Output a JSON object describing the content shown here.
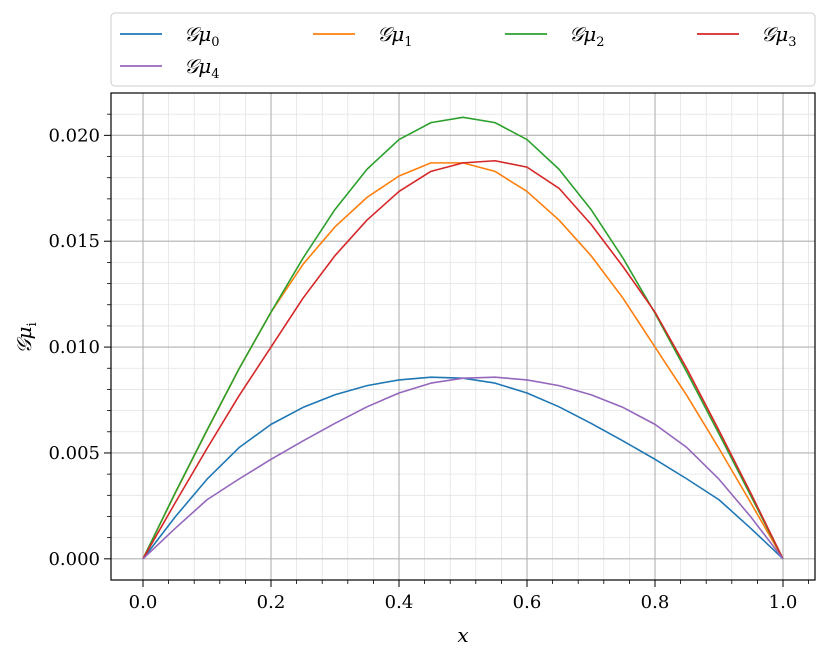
{
  "chart_data": {
    "type": "line",
    "xlabel": "x",
    "ylabel_main": "𝒢μ",
    "ylabel_sub": "i",
    "xlim": [
      -0.05,
      1.05
    ],
    "ylim": [
      -0.001,
      0.022
    ],
    "xticks": [
      0.0,
      0.2,
      0.4,
      0.6,
      0.8,
      1.0
    ],
    "xtick_labels": [
      "0.0",
      "0.2",
      "0.4",
      "0.6",
      "0.8",
      "1.0"
    ],
    "yticks": [
      0.0,
      0.005,
      0.01,
      0.015,
      0.02
    ],
    "ytick_labels": [
      "0.000",
      "0.005",
      "0.010",
      "0.015",
      "0.020"
    ],
    "grid": true,
    "minor_grid": true,
    "legend_position": "top",
    "x": [
      0.0,
      0.05,
      0.1,
      0.15,
      0.2,
      0.25,
      0.3,
      0.35,
      0.4,
      0.45,
      0.5,
      0.55,
      0.6,
      0.65,
      0.7,
      0.75,
      0.8,
      0.85,
      0.9,
      0.95,
      1.0
    ],
    "series": [
      {
        "name": "𝒢μ",
        "sub": "0",
        "color": "#1f77b4",
        "values": [
          0.0,
          0.00197,
          0.00376,
          0.00525,
          0.00635,
          0.00715,
          0.00775,
          0.00818,
          0.00845,
          0.00858,
          0.00853,
          0.0083,
          0.00783,
          0.00718,
          0.0064,
          0.00557,
          0.0047,
          0.00377,
          0.00279,
          0.00143,
          0.0
        ]
      },
      {
        "name": "𝒢μ",
        "sub": "1",
        "color": "#ff7f0e",
        "values": [
          0.0,
          0.00308,
          0.00606,
          0.00897,
          0.01165,
          0.01391,
          0.01568,
          0.01707,
          0.01808,
          0.0187,
          0.0187,
          0.0183,
          0.01735,
          0.016,
          0.01432,
          0.01231,
          0.01,
          0.0077,
          0.00521,
          0.00263,
          0.0
        ]
      },
      {
        "name": "𝒢μ",
        "sub": "2",
        "color": "#2ca02c",
        "values": [
          0.0,
          0.0031,
          0.00608,
          0.00897,
          0.01165,
          0.0142,
          0.0165,
          0.0184,
          0.0198,
          0.0206,
          0.02085,
          0.0206,
          0.0198,
          0.0184,
          0.0165,
          0.0142,
          0.0116,
          0.0088,
          0.0059,
          0.00296,
          0.0
        ]
      },
      {
        "name": "𝒢μ",
        "sub": "3",
        "color": "#d62728",
        "values": [
          0.0,
          0.00263,
          0.00521,
          0.0077,
          0.01,
          0.01231,
          0.01432,
          0.016,
          0.01735,
          0.0183,
          0.0187,
          0.0188,
          0.0185,
          0.0175,
          0.0158,
          0.0138,
          0.01165,
          0.00897,
          0.00606,
          0.00308,
          0.0
        ]
      },
      {
        "name": "𝒢μ",
        "sub": "4",
        "color": "#9467bd",
        "values": [
          0.0,
          0.00143,
          0.00279,
          0.00377,
          0.0047,
          0.00557,
          0.0064,
          0.00718,
          0.00783,
          0.0083,
          0.00853,
          0.00858,
          0.00845,
          0.00818,
          0.00775,
          0.00715,
          0.00635,
          0.00525,
          0.00376,
          0.00197,
          0.0
        ]
      }
    ]
  }
}
